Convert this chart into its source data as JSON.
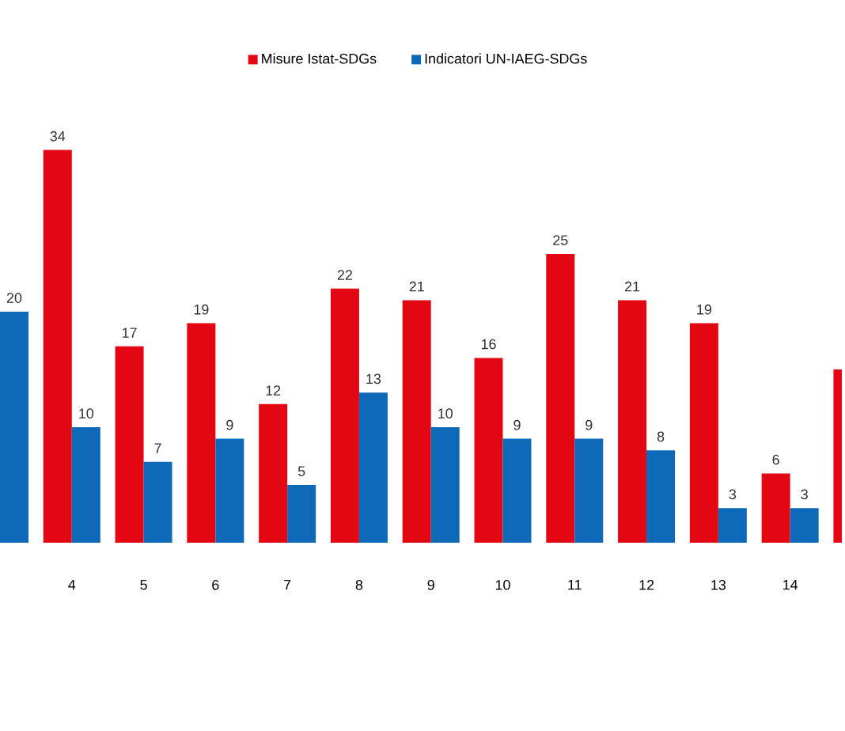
{
  "chart_data": {
    "type": "bar",
    "categories": [
      null,
      "4",
      "5",
      "6",
      "7",
      "8",
      "9",
      "10",
      "11",
      "12",
      "13",
      "14",
      null
    ],
    "legend": "top",
    "series": [
      {
        "name": "Misure Istat-SDGs",
        "color": "#e30613",
        "values": [
          null,
          34,
          17,
          19,
          12,
          22,
          21,
          16,
          25,
          21,
          19,
          6,
          15
        ],
        "value_labels": [
          null,
          "34",
          "17",
          "19",
          "12",
          "22",
          "21",
          "16",
          "25",
          "21",
          "19",
          "6",
          null
        ]
      },
      {
        "name": "Indicatori UN-IAEG-SDGs",
        "color": "#0e6ab8",
        "values": [
          20,
          10,
          7,
          9,
          5,
          13,
          10,
          9,
          9,
          8,
          3,
          3,
          null
        ],
        "value_labels": [
          "20",
          "10",
          "7",
          "9",
          "5",
          "13",
          "10",
          "9",
          "9",
          "8",
          "3",
          "3",
          null
        ]
      }
    ]
  }
}
